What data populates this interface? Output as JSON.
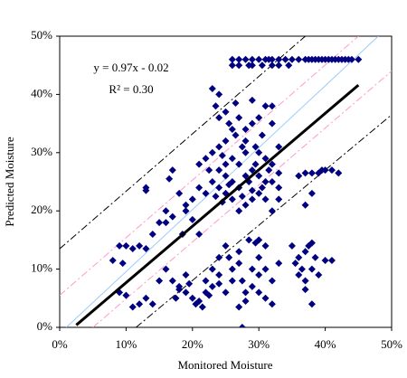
{
  "chart_data": {
    "type": "scatter",
    "x_label": "Monitored Moisture",
    "y_label": "Predicted Moisture",
    "annotations": [
      "y = 0.97x - 0.02",
      "R² = 0.30"
    ],
    "xlim": [
      0,
      50
    ],
    "ylim": [
      0,
      50
    ],
    "xticks": [
      {
        "value": 0,
        "label": "0%"
      },
      {
        "value": 10,
        "label": "10%"
      },
      {
        "value": 20,
        "label": "20%"
      },
      {
        "value": 30,
        "label": "30%"
      },
      {
        "value": 40,
        "label": "40%"
      },
      {
        "value": 50,
        "label": "50%"
      }
    ],
    "yticks": [
      {
        "value": 0,
        "label": "0%"
      },
      {
        "value": 10,
        "label": "10%"
      },
      {
        "value": 20,
        "label": "20%"
      },
      {
        "value": 30,
        "label": "30%"
      },
      {
        "value": 40,
        "label": "40%"
      },
      {
        "value": 50,
        "label": "50%"
      }
    ],
    "series": [
      {
        "color": "#000080",
        "x": [
          26,
          27,
          28,
          29,
          30,
          31,
          31.5,
          32,
          33,
          34,
          35,
          36,
          37,
          37.5,
          38,
          38.5,
          39,
          39.5,
          40,
          40.5,
          41,
          41.5,
          42,
          42.5,
          43,
          43.5,
          44,
          45,
          26,
          27,
          28.5,
          29,
          30.5,
          32,
          33,
          34.5,
          23,
          24,
          23.5,
          24,
          25,
          25.5,
          26,
          26.5,
          27,
          27.5,
          25,
          24,
          23,
          22,
          21,
          22.5,
          24,
          25,
          26,
          27,
          28,
          28.5,
          29,
          29.5,
          30,
          30.5,
          31,
          31.5,
          32,
          33,
          30,
          29,
          28,
          27,
          26,
          25,
          24,
          23,
          22,
          21,
          20,
          19,
          24.5,
          28,
          29,
          30,
          31,
          29,
          30,
          31,
          32,
          33,
          28,
          27,
          26,
          25,
          26.5,
          28,
          29.5,
          30.5,
          25.5,
          23.5,
          24.5,
          27.5,
          29,
          31,
          32,
          33,
          33,
          32,
          32,
          10,
          9,
          8,
          9.5,
          12,
          13,
          11,
          13,
          13,
          15,
          16,
          16,
          17,
          16.5,
          17,
          18,
          18.5,
          19,
          20,
          21,
          14,
          9,
          10,
          11,
          12,
          13,
          14,
          15,
          16,
          17,
          18,
          19,
          20,
          21,
          21.5,
          20.5,
          22,
          22.5,
          23,
          24,
          25,
          24,
          23,
          24,
          25,
          26,
          27,
          27.5,
          28,
          28,
          29,
          29,
          30,
          30,
          29.5,
          31,
          32,
          33,
          30,
          31,
          32,
          27,
          27.5,
          19,
          18,
          17.5,
          19.5,
          22,
          26,
          25.5,
          27,
          28.5,
          30,
          31,
          36,
          37,
          37.5,
          38,
          36.5,
          37,
          36,
          35.5,
          38,
          39,
          38.5,
          40,
          41,
          37,
          35,
          38,
          36,
          37,
          38,
          39,
          39.5,
          41,
          42,
          37,
          38,
          40
        ],
        "values": [
          46,
          46,
          46,
          46,
          46,
          46,
          46,
          46,
          46,
          46,
          46,
          46,
          46,
          46,
          46,
          46,
          46,
          46,
          46,
          46,
          46,
          46,
          46,
          46,
          46,
          46,
          46,
          46,
          45,
          45,
          45,
          45,
          45,
          45,
          45,
          45,
          41,
          40,
          38,
          36,
          37,
          35,
          34,
          33,
          36,
          31,
          32,
          31,
          30,
          29,
          28,
          27,
          27,
          26,
          25,
          24,
          26,
          25,
          27,
          28,
          30,
          33,
          29,
          27,
          25,
          24,
          23,
          22,
          21,
          20,
          22,
          23,
          24,
          25,
          23,
          24,
          22,
          21,
          29.5,
          34,
          35,
          36,
          38,
          39,
          26,
          22,
          20,
          22,
          30,
          28,
          29,
          28,
          38.5,
          32,
          31,
          24,
          24.5,
          22.5,
          21.5,
          22.5,
          23.5,
          25,
          28,
          31,
          26.5,
          35,
          38,
          14,
          14,
          11.5,
          11,
          14,
          13.5,
          13.5,
          23.5,
          24,
          18,
          18,
          20,
          19,
          25.5,
          27,
          23,
          16,
          20,
          18.5,
          16,
          16,
          6,
          5.5,
          3.5,
          4,
          5,
          4,
          8,
          10,
          8,
          7,
          6,
          5,
          4.5,
          3.5,
          4,
          6,
          5.5,
          7,
          7.5,
          6,
          9,
          10,
          12,
          14,
          10,
          11,
          8,
          6,
          4.5,
          7,
          10,
          9,
          12,
          14.5,
          10,
          8,
          11,
          6,
          5,
          4,
          3.5,
          0,
          9,
          6.5,
          5,
          7.5,
          8,
          8,
          12,
          13,
          15,
          15,
          14,
          12,
          13,
          14,
          14.5,
          10,
          8,
          9,
          11,
          10,
          9,
          12,
          11.5,
          11.5,
          6.5,
          14,
          4,
          26,
          26.5,
          26.5,
          26.5,
          27,
          27,
          26.5,
          21,
          23,
          27
        ]
      }
    ],
    "lines": [
      {
        "color": "#000000",
        "width": 3,
        "dash": "",
        "x": [
          2.5,
          45
        ],
        "y": [
          0.4,
          41.6
        ]
      },
      {
        "color": "#99ccff",
        "width": 1,
        "dash": "",
        "x": [
          1,
          48
        ],
        "y": [
          0,
          50
        ]
      },
      {
        "color": "#ff99cc",
        "width": 1,
        "dash": "8 3 2 3",
        "x": [
          0,
          45
        ],
        "y": [
          5.5,
          50
        ]
      },
      {
        "color": "#ff99cc",
        "width": 1,
        "dash": "8 3 2 3",
        "x": [
          5,
          50
        ],
        "y": [
          0,
          44
        ]
      },
      {
        "color": "#000000",
        "width": 1,
        "dash": "8 3 2 3",
        "x": [
          0,
          37
        ],
        "y": [
          13.5,
          50
        ]
      },
      {
        "color": "#000000",
        "width": 1,
        "dash": "8 3 2 3",
        "x": [
          11.5,
          50
        ],
        "y": [
          0,
          36.5
        ]
      }
    ]
  }
}
